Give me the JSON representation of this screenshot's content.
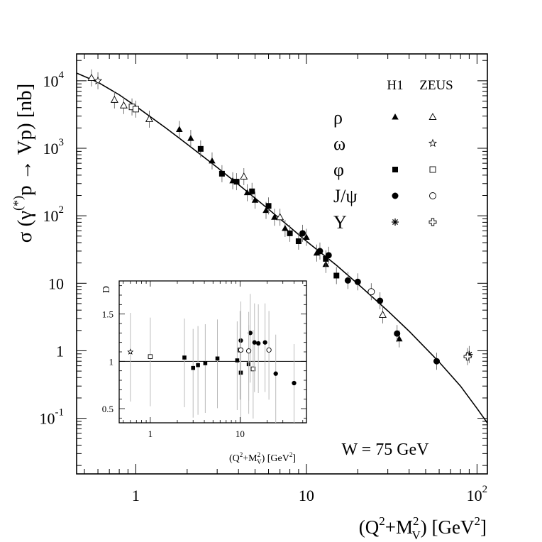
{
  "chart_data": [
    {
      "type": "scatter",
      "title": "",
      "xlabel": "(Q²+M²V) [GeV²]",
      "xlabel_parts": {
        "open": "(Q",
        "sup1": "2",
        "plus": "+M",
        "sup2": "2",
        "sub": "V",
        "close": ") [GeV",
        "sup3": "2",
        "end": "]"
      },
      "ylabel": "σ (γ(*)p → Vp) [nb]",
      "ylabel_parts": {
        "sigma": "σ (γ",
        "sup": "(*)",
        "rest": "p → Vp) [nb]"
      },
      "x_scale": "log",
      "y_scale": "log",
      "xlim": [
        0.45,
        115
      ],
      "ylim": [
        0.015,
        25000
      ],
      "x_ticks": [
        {
          "value": 1,
          "label": "1"
        },
        {
          "value": 10,
          "label": "10"
        },
        {
          "value": 100,
          "label": "10",
          "sup": "2"
        }
      ],
      "y_ticks": [
        {
          "value": 0.1,
          "label": "10",
          "sup": "-1"
        },
        {
          "value": 1,
          "label": "1"
        },
        {
          "value": 10,
          "label": "10"
        },
        {
          "value": 100,
          "label": "10",
          "sup": "2"
        },
        {
          "value": 1000,
          "label": "10",
          "sup": "3"
        },
        {
          "value": 10000,
          "label": "10",
          "sup": "4"
        }
      ],
      "annotation": "W = 75 GeV",
      "legend": {
        "placement": "top-right",
        "headers": [
          "H1",
          "ZEUS"
        ],
        "rows": [
          {
            "label": "ρ",
            "h1": "triangle-filled",
            "zeus": "triangle-open"
          },
          {
            "label": "ω",
            "h1": "",
            "zeus": "star-open"
          },
          {
            "label": "φ",
            "h1": "square-filled",
            "zeus": "square-open"
          },
          {
            "label": "J/ψ",
            "h1": "circle-filled",
            "zeus": "circle-open"
          },
          {
            "label": "Υ",
            "h1": "asterisk",
            "zeus": "cross-open"
          }
        ]
      },
      "fit_curve": {
        "name": "fit",
        "x": [
          0.45,
          0.6,
          0.8,
          1.0,
          1.5,
          2.0,
          3.0,
          4.0,
          6.0,
          8.0,
          10.0,
          15.0,
          20.0,
          30.0,
          40.0,
          60.0,
          80.0,
          100.0,
          115.0
        ],
        "y": [
          13000,
          9500,
          6200,
          4200,
          2000,
          1150,
          520,
          290,
          125,
          68,
          42,
          18.5,
          9.8,
          3.9,
          1.95,
          0.68,
          0.3,
          0.14,
          0.085
        ]
      },
      "series": [
        {
          "name": "H1 ρ",
          "marker": "triangle-filled",
          "points": [
            {
              "x": 1.8,
              "y": 1900
            },
            {
              "x": 2.1,
              "y": 1400
            },
            {
              "x": 2.8,
              "y": 650
            },
            {
              "x": 3.7,
              "y": 330
            },
            {
              "x": 4.5,
              "y": 220
            },
            {
              "x": 5.0,
              "y": 170
            },
            {
              "x": 5.8,
              "y": 120
            },
            {
              "x": 6.5,
              "y": 95
            },
            {
              "x": 7.5,
              "y": 65
            },
            {
              "x": 10.0,
              "y": 48
            },
            {
              "x": 11.5,
              "y": 28
            },
            {
              "x": 13.0,
              "y": 19
            },
            {
              "x": 35.0,
              "y": 1.5
            }
          ]
        },
        {
          "name": "ZEUS ρ",
          "marker": "triangle-open",
          "points": [
            {
              "x": 0.55,
              "y": 11000
            },
            {
              "x": 0.75,
              "y": 5200
            },
            {
              "x": 0.85,
              "y": 4300
            },
            {
              "x": 1.2,
              "y": 2700
            },
            {
              "x": 4.3,
              "y": 380
            },
            {
              "x": 7.0,
              "y": 95
            },
            {
              "x": 28.0,
              "y": 3.4
            }
          ]
        },
        {
          "name": "ZEUS ω",
          "marker": "star-open",
          "points": [
            {
              "x": 0.6,
              "y": 10000
            }
          ]
        },
        {
          "name": "H1 φ",
          "marker": "square-filled",
          "points": [
            {
              "x": 2.4,
              "y": 980
            },
            {
              "x": 3.2,
              "y": 420
            },
            {
              "x": 3.9,
              "y": 320
            },
            {
              "x": 4.8,
              "y": 230
            },
            {
              "x": 6.0,
              "y": 140
            },
            {
              "x": 8.0,
              "y": 55
            },
            {
              "x": 9.0,
              "y": 42
            },
            {
              "x": 13.0,
              "y": 23
            },
            {
              "x": 15.0,
              "y": 13
            }
          ]
        },
        {
          "name": "ZEUS φ",
          "marker": "square-open",
          "points": [
            {
              "x": 0.95,
              "y": 4100
            },
            {
              "x": 1.0,
              "y": 3800
            }
          ]
        },
        {
          "name": "H1 J/ψ",
          "marker": "circle-filled",
          "points": [
            {
              "x": 9.5,
              "y": 55
            },
            {
              "x": 12.0,
              "y": 30
            },
            {
              "x": 13.5,
              "y": 26
            },
            {
              "x": 17.5,
              "y": 11
            },
            {
              "x": 20.0,
              "y": 10.5
            },
            {
              "x": 27.0,
              "y": 5.5
            },
            {
              "x": 34.0,
              "y": 1.8
            },
            {
              "x": 58.0,
              "y": 0.7
            }
          ]
        },
        {
          "name": "ZEUS J/ψ",
          "marker": "circle-open",
          "points": [
            {
              "x": 24.0,
              "y": 7.5
            }
          ]
        },
        {
          "name": "H1 Υ",
          "marker": "asterisk",
          "points": [
            {
              "x": 90.0,
              "y": 0.88
            }
          ]
        },
        {
          "name": "ZEUS Υ",
          "marker": "cross-open",
          "points": [
            {
              "x": 88.0,
              "y": 0.82
            }
          ]
        }
      ]
    },
    {
      "type": "scatter",
      "title": "inset",
      "xlabel": "(Q²+M²V) [GeV²]",
      "xlabel_parts": {
        "open": "(Q",
        "sup1": "2",
        "plus": "+M",
        "sup2": "2",
        "sub": "V",
        "close": ") [GeV",
        "sup3": "2",
        "end": "]"
      },
      "ylabel": "D",
      "x_scale": "log",
      "y_scale": "linear",
      "xlim": [
        0.45,
        55
      ],
      "ylim": [
        0.35,
        1.85
      ],
      "reference_line": 1,
      "x_ticks": [
        {
          "value": 1,
          "label": "1"
        },
        {
          "value": 10,
          "label": "10"
        }
      ],
      "y_ticks": [
        {
          "value": 0.5,
          "label": "0.5"
        },
        {
          "value": 1,
          "label": "1"
        },
        {
          "value": 1.5,
          "label": "1.5"
        }
      ],
      "series": [
        {
          "name": "ZEUS ω",
          "marker": "star-open",
          "points": [
            {
              "x": 0.6,
              "y": 1.1
            }
          ]
        },
        {
          "name": "ZEUS φ",
          "marker": "square-open",
          "points": [
            {
              "x": 1.0,
              "y": 1.05
            },
            {
              "x": 10.0,
              "y": 1.12
            },
            {
              "x": 14.0,
              "y": 0.92
            }
          ]
        },
        {
          "name": "H1 φ",
          "marker": "square-filled",
          "points": [
            {
              "x": 2.4,
              "y": 1.04
            },
            {
              "x": 3.0,
              "y": 0.93
            },
            {
              "x": 3.4,
              "y": 0.96
            },
            {
              "x": 4.1,
              "y": 0.98
            },
            {
              "x": 5.6,
              "y": 1.03
            },
            {
              "x": 9.3,
              "y": 1.01
            },
            {
              "x": 10.2,
              "y": 0.88
            },
            {
              "x": 12.5,
              "y": 0.97
            }
          ]
        },
        {
          "name": "H1 J/ψ",
          "marker": "circle-filled",
          "points": [
            {
              "x": 10.2,
              "y": 1.22
            },
            {
              "x": 13.0,
              "y": 1.3
            },
            {
              "x": 14.5,
              "y": 1.2
            },
            {
              "x": 16.0,
              "y": 1.19
            },
            {
              "x": 19.0,
              "y": 1.2
            },
            {
              "x": 25.0,
              "y": 0.87
            },
            {
              "x": 40.0,
              "y": 0.77
            }
          ]
        },
        {
          "name": "ZEUS J/ψ",
          "marker": "circle-open",
          "points": [
            {
              "x": 10.2,
              "y": 1.12
            },
            {
              "x": 12.5,
              "y": 1.11
            },
            {
              "x": 21.0,
              "y": 1.12
            }
          ]
        }
      ]
    }
  ]
}
